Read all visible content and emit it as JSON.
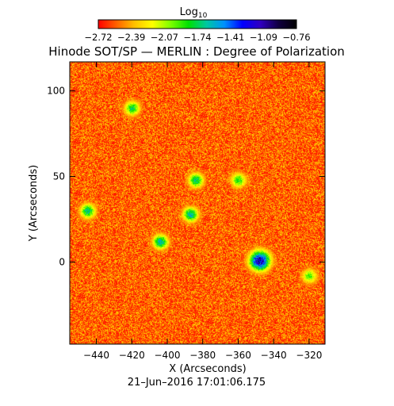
{
  "chart_data": {
    "type": "heatmap",
    "title": "Hinode SOT/SP — MERLIN : Degree of Polarization",
    "colorbar": {
      "label": "Log",
      "label_sub": "10",
      "ticks": [
        "−2.72",
        "−2.39",
        "−2.07",
        "−1.74",
        "−1.41",
        "−1.09",
        "−0.76"
      ],
      "range": [
        -2.72,
        -0.76
      ],
      "colors": [
        "#ff0000",
        "#ff6000",
        "#ffc000",
        "#ffff00",
        "#7fff00",
        "#00e000",
        "#00c8a0",
        "#0090ff",
        "#0000ff",
        "#3000c0",
        "#100040",
        "#000000"
      ]
    },
    "xlabel": "X (Arcseconds)",
    "ylabel": "Y (Arcseconds)",
    "xlim": [
      -455,
      -311
    ],
    "ylim": [
      -48,
      117
    ],
    "xticks": [
      -440,
      -420,
      -400,
      -380,
      -360,
      -340,
      -320
    ],
    "xtick_labels": [
      "−440",
      "−420",
      "−400",
      "−380",
      "−360",
      "−340",
      "−320"
    ],
    "yticks": [
      0,
      50,
      100
    ],
    "ytick_labels": [
      "0",
      "50",
      "100"
    ],
    "timestamp": "21–Jun–2016 17:01:06.175",
    "features": [
      {
        "feature": "sunspot",
        "x": -348,
        "y": 1,
        "log_value": -0.8
      },
      {
        "feature": "network",
        "x": -420,
        "y": 90,
        "log_value": -1.6
      },
      {
        "feature": "network",
        "x": -384,
        "y": 48,
        "log_value": -1.5
      },
      {
        "feature": "network",
        "x": -387,
        "y": 28,
        "log_value": -1.4
      },
      {
        "feature": "network",
        "x": -445,
        "y": 30,
        "log_value": -1.5
      },
      {
        "feature": "network",
        "x": -404,
        "y": 12,
        "log_value": -1.4
      },
      {
        "feature": "network",
        "x": -360,
        "y": 48,
        "log_value": -1.7
      },
      {
        "feature": "network",
        "x": -320,
        "y": -8,
        "log_value": -1.8
      }
    ]
  }
}
